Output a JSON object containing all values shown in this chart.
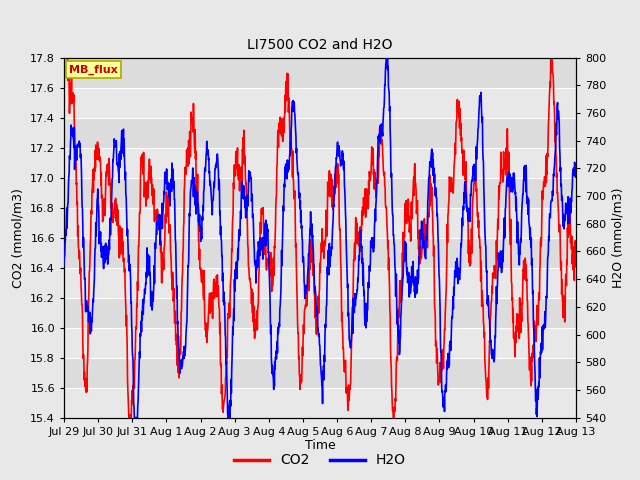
{
  "title": "LI7500 CO2 and H2O",
  "xlabel": "Time",
  "ylabel_left": "CO2 (mmol/m3)",
  "ylabel_right": "H2O (mmol/m3)",
  "co2_ylim": [
    15.4,
    17.8
  ],
  "h2o_ylim": [
    540,
    800
  ],
  "co2_yticks": [
    15.4,
    15.6,
    15.8,
    16.0,
    16.2,
    16.4,
    16.6,
    16.8,
    17.0,
    17.2,
    17.4,
    17.6,
    17.8
  ],
  "h2o_yticks": [
    540,
    560,
    580,
    600,
    620,
    640,
    660,
    680,
    700,
    720,
    740,
    760,
    780,
    800
  ],
  "xtick_labels": [
    "Jul 29",
    "Jul 30",
    "Jul 31",
    "Aug 1",
    "Aug 2",
    "Aug 3",
    "Aug 4",
    "Aug 5",
    "Aug 6",
    "Aug 7",
    "Aug 8",
    "Aug 9",
    "Aug 10",
    "Aug 11",
    "Aug 12",
    "Aug 13"
  ],
  "co2_color": "#FF0000",
  "h2o_color": "#0000FF",
  "line_width": 1.2,
  "bg_color": "#E8E8E8",
  "plot_bg_color": "#DCDCDC",
  "stripe_color": "#C8C8C8",
  "annotation_text": "MB_flux",
  "annotation_bg": "#FFFF99",
  "annotation_border": "#AAAA00",
  "annotation_text_color": "#CC0000",
  "legend_co2": "CO2",
  "legend_h2o": "H2O",
  "n_points": 1500,
  "figwidth": 6.4,
  "figheight": 4.8,
  "dpi": 100
}
